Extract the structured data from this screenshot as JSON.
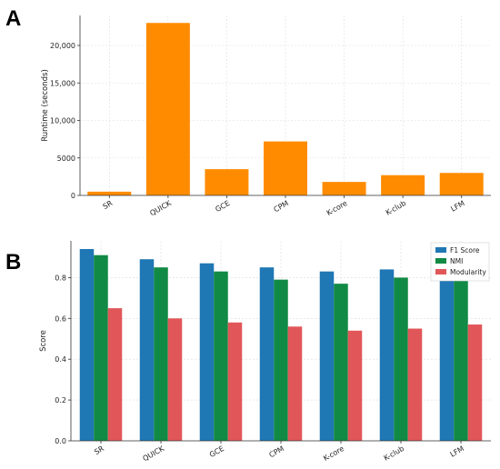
{
  "panels": [
    "A",
    "B"
  ],
  "chart_data": [
    {
      "panel": "A",
      "type": "bar",
      "title": "",
      "xlabel": "",
      "ylabel": "Runtime (seconds)",
      "categories": [
        "SR",
        "QUICK",
        "GCE",
        "CPM",
        "K-core",
        "K-club",
        "LFM"
      ],
      "values": [
        500,
        23000,
        3500,
        7200,
        1800,
        2700,
        3000
      ],
      "ylim": [
        0,
        24000
      ],
      "yticks": [
        0,
        5000,
        10000,
        15000,
        20000
      ],
      "ytick_labels": [
        "0",
        "5000",
        "10,000",
        "15,000",
        "20,000"
      ],
      "color": "#ff8c00",
      "grid": true
    },
    {
      "panel": "B",
      "type": "bar",
      "title": "",
      "xlabel": "",
      "ylabel": "Score",
      "categories": [
        "SR",
        "QUICK",
        "GCE",
        "CPM",
        "K-core",
        "K-club",
        "LFM"
      ],
      "series": [
        {
          "name": "F1 Score",
          "color": "#1f77b4",
          "values": [
            0.94,
            0.89,
            0.87,
            0.85,
            0.83,
            0.84,
            0.86
          ]
        },
        {
          "name": "NMI",
          "color": "#118a45",
          "values": [
            0.91,
            0.85,
            0.83,
            0.79,
            0.77,
            0.8,
            0.81
          ]
        },
        {
          "name": "Modularity",
          "color": "#e15759",
          "values": [
            0.65,
            0.6,
            0.58,
            0.56,
            0.54,
            0.55,
            0.57
          ]
        }
      ],
      "ylim": [
        0,
        0.98
      ],
      "yticks": [
        0,
        0.2,
        0.4,
        0.6,
        0.8
      ],
      "ytick_labels": [
        "0.0",
        "0.2",
        "0.4",
        "0.6",
        "0.8"
      ],
      "legend": "top-right",
      "grid": true
    }
  ]
}
